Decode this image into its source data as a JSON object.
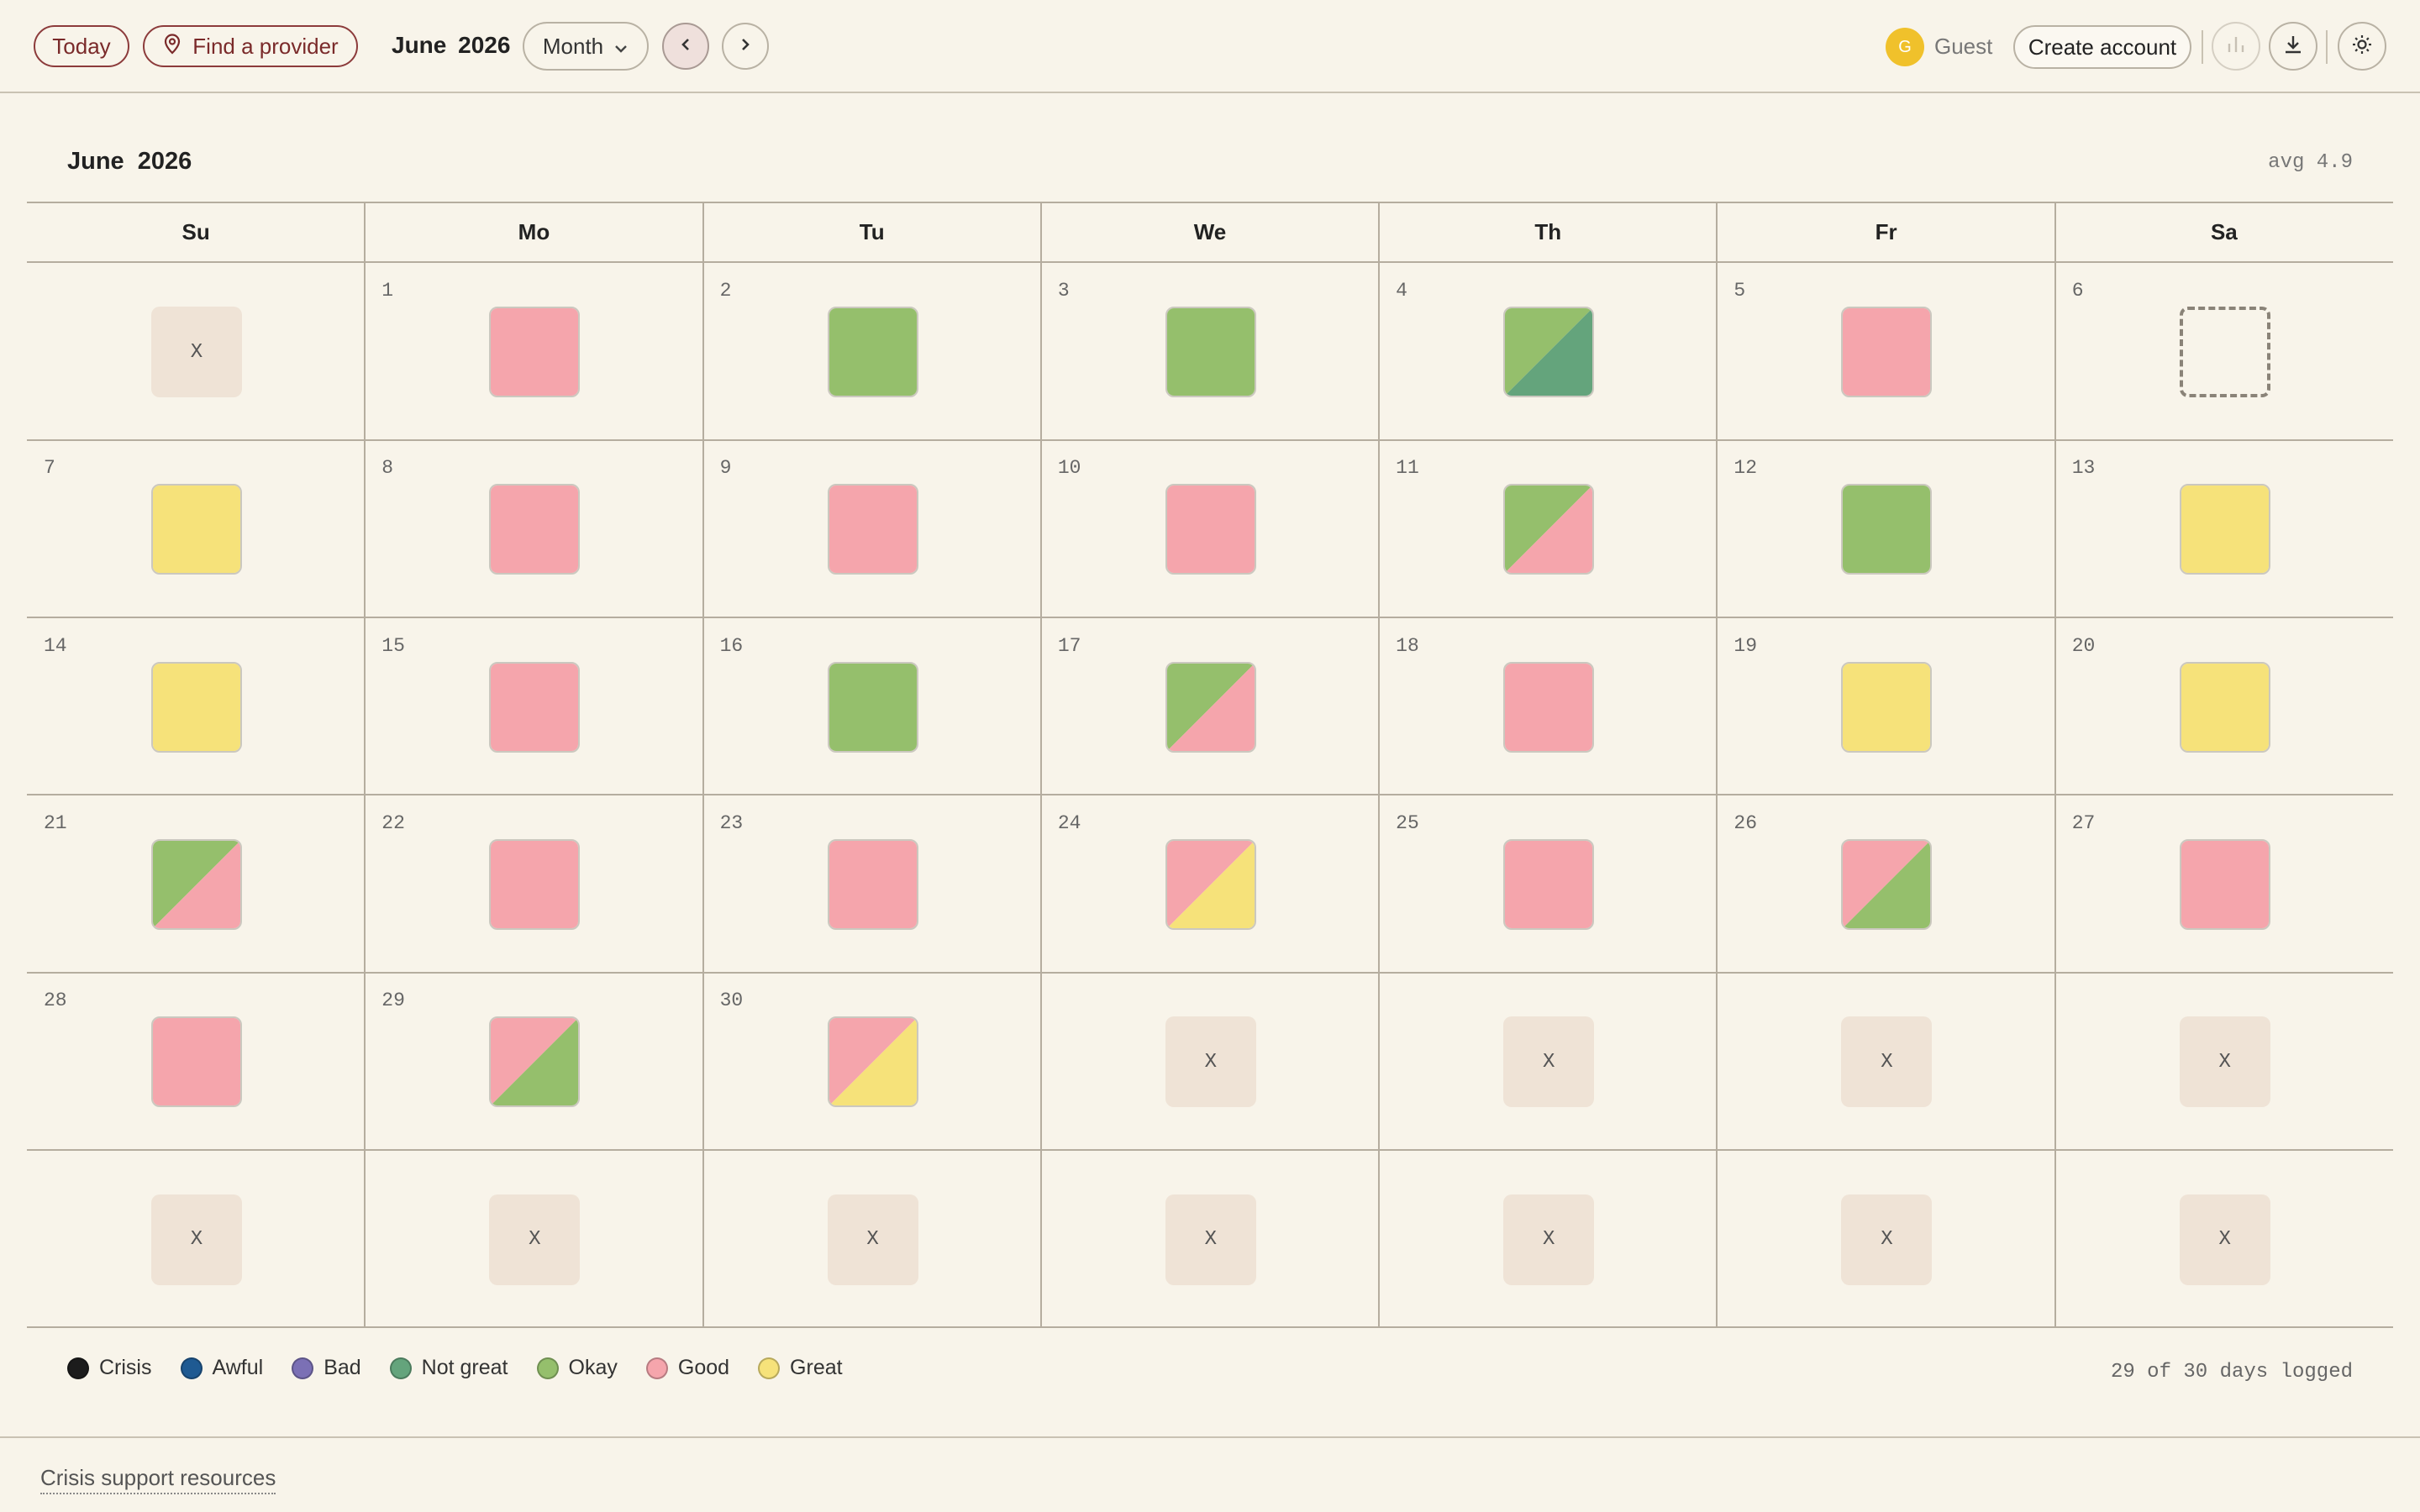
{
  "header": {
    "today_label": "Today",
    "provider_label": "Find a provider",
    "month_label": "June 2026",
    "view_select": "Month",
    "user_initial": "G",
    "user_name": "Guest",
    "create_account_label": "Create account",
    "icons": [
      "map-pin-icon",
      "chevron-down-icon",
      "chevron-left-icon",
      "chevron-right-icon",
      "bar-chart-icon",
      "download-icon",
      "sun-icon"
    ]
  },
  "calendar": {
    "title": "June 2026",
    "avg": "avg 4.9",
    "weekdays": [
      "Su",
      "Mo",
      "Tu",
      "We",
      "Th",
      "Fr",
      "Sa"
    ],
    "empty_marker": "X",
    "cells": [
      {
        "day": "",
        "moods": []
      },
      {
        "day": "1",
        "moods": [
          "Good"
        ]
      },
      {
        "day": "2",
        "moods": [
          "Okay"
        ]
      },
      {
        "day": "3",
        "moods": [
          "Okay"
        ]
      },
      {
        "day": "4",
        "moods": [
          "Okay",
          "Not great"
        ]
      },
      {
        "day": "5",
        "moods": [
          "Good"
        ]
      },
      {
        "day": "6",
        "moods": [],
        "missing": true
      },
      {
        "day": "7",
        "moods": [
          "Great"
        ]
      },
      {
        "day": "8",
        "moods": [
          "Good"
        ]
      },
      {
        "day": "9",
        "moods": [
          "Good"
        ]
      },
      {
        "day": "10",
        "moods": [
          "Good"
        ]
      },
      {
        "day": "11",
        "moods": [
          "Okay",
          "Good"
        ]
      },
      {
        "day": "12",
        "moods": [
          "Okay"
        ]
      },
      {
        "day": "13",
        "moods": [
          "Great"
        ]
      },
      {
        "day": "14",
        "moods": [
          "Great"
        ]
      },
      {
        "day": "15",
        "moods": [
          "Good"
        ]
      },
      {
        "day": "16",
        "moods": [
          "Okay"
        ]
      },
      {
        "day": "17",
        "moods": [
          "Okay",
          "Good"
        ]
      },
      {
        "day": "18",
        "moods": [
          "Good"
        ]
      },
      {
        "day": "19",
        "moods": [
          "Great"
        ]
      },
      {
        "day": "20",
        "moods": [
          "Great"
        ]
      },
      {
        "day": "21",
        "moods": [
          "Okay",
          "Good"
        ]
      },
      {
        "day": "22",
        "moods": [
          "Good"
        ]
      },
      {
        "day": "23",
        "moods": [
          "Good"
        ]
      },
      {
        "day": "24",
        "moods": [
          "Good",
          "Great"
        ]
      },
      {
        "day": "25",
        "moods": [
          "Good"
        ]
      },
      {
        "day": "26",
        "moods": [
          "Good",
          "Okay"
        ]
      },
      {
        "day": "27",
        "moods": [
          "Good"
        ]
      },
      {
        "day": "28",
        "moods": [
          "Good"
        ]
      },
      {
        "day": "29",
        "moods": [
          "Good",
          "Okay"
        ]
      },
      {
        "day": "30",
        "moods": [
          "Good",
          "Great"
        ]
      },
      {
        "day": "",
        "moods": []
      },
      {
        "day": "",
        "moods": []
      },
      {
        "day": "",
        "moods": []
      },
      {
        "day": "",
        "moods": []
      },
      {
        "day": "",
        "moods": []
      },
      {
        "day": "",
        "moods": []
      },
      {
        "day": "",
        "moods": []
      },
      {
        "day": "",
        "moods": []
      },
      {
        "day": "",
        "moods": []
      },
      {
        "day": "",
        "moods": []
      },
      {
        "day": "",
        "moods": []
      }
    ]
  },
  "legend": [
    {
      "label": "Crisis",
      "color": "#1c1c1c"
    },
    {
      "label": "Awful",
      "color": "#1f5a92"
    },
    {
      "label": "Bad",
      "color": "#7b70b5"
    },
    {
      "label": "Not great",
      "color": "#64a47c"
    },
    {
      "label": "Okay",
      "color": "#95bf6c"
    },
    {
      "label": "Good",
      "color": "#f5a5ac"
    },
    {
      "label": "Great",
      "color": "#f6e27a"
    }
  ],
  "logged_summary": "29 of 30 days logged",
  "footer": {
    "crisis_link": "Crisis support resources"
  }
}
